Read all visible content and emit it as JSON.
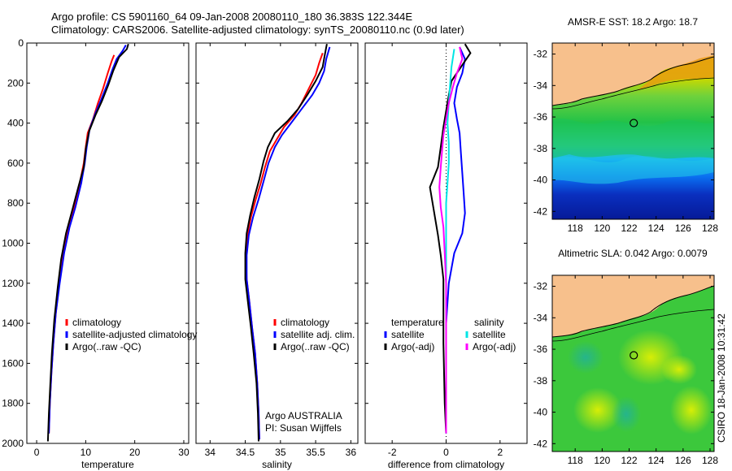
{
  "titles": {
    "line1": "Argo profile: CS 5901160_64 09-Jan-2008 20080110_180 36.383S 122.344E",
    "line2": "Climatology: CARS2006. Satellite-adjusted climatology: synTS_20080110.nc (0.9d later)"
  },
  "side_credit": "CSIRO 18-Jan-2008 10:31:42",
  "colors": {
    "climatology": "#ff0000",
    "satellite": "#0000ff",
    "argo": "#000000",
    "salinity_satellite": "#00e5e5",
    "salinity_argo": "#ff00ff",
    "land": "#f7c08c"
  },
  "chart_data": [
    {
      "type": "line",
      "id": "temperature",
      "xlabel": "temperature",
      "xlim": [
        -2,
        31
      ],
      "ylim": [
        2000,
        0
      ],
      "xticks": [
        0,
        10,
        20,
        30
      ],
      "yticks": [
        0,
        200,
        400,
        600,
        800,
        1000,
        1200,
        1400,
        1600,
        1800,
        2000
      ],
      "legend": [
        "climatology",
        "satellite-adjusted climatology",
        "Argo(..raw -QC)"
      ],
      "series": [
        {
          "name": "climatology",
          "color": "#ff0000",
          "points": [
            [
              15.8,
              60
            ],
            [
              15.3,
              90
            ],
            [
              14.5,
              150
            ],
            [
              13.5,
              230
            ],
            [
              12.5,
              300
            ],
            [
              11.5,
              380
            ],
            [
              10.4,
              450
            ],
            [
              10.0,
              520
            ],
            [
              9.6,
              600
            ],
            [
              8.8,
              700
            ],
            [
              7.6,
              820
            ],
            [
              6.5,
              920
            ],
            [
              5.5,
              1050
            ],
            [
              4.6,
              1200
            ],
            [
              3.9,
              1350
            ],
            [
              3.4,
              1500
            ],
            [
              3.0,
              1650
            ],
            [
              2.7,
              1800
            ],
            [
              2.5,
              1950
            ]
          ]
        },
        {
          "name": "satellite-adjusted climatology",
          "color": "#0000ff",
          "points": [
            [
              18.2,
              10
            ],
            [
              17.5,
              40
            ],
            [
              16.3,
              80
            ],
            [
              15.5,
              130
            ],
            [
              14.5,
              200
            ],
            [
              13.2,
              280
            ],
            [
              12.0,
              350
            ],
            [
              10.8,
              430
            ],
            [
              10.2,
              520
            ],
            [
              9.8,
              600
            ],
            [
              9.1,
              700
            ],
            [
              7.9,
              820
            ],
            [
              6.7,
              920
            ],
            [
              5.6,
              1050
            ],
            [
              4.7,
              1200
            ],
            [
              3.9,
              1350
            ],
            [
              3.4,
              1500
            ],
            [
              3.0,
              1650
            ],
            [
              2.7,
              1800
            ],
            [
              2.5,
              1950
            ]
          ]
        },
        {
          "name": "Argo(..raw -QC)",
          "color": "#000000",
          "points": [
            [
              18.7,
              5
            ],
            [
              18.4,
              30
            ],
            [
              16.8,
              70
            ],
            [
              15.6,
              140
            ],
            [
              14.6,
              210
            ],
            [
              13.3,
              290
            ],
            [
              12.0,
              360
            ],
            [
              10.7,
              440
            ],
            [
              10.0,
              530
            ],
            [
              9.6,
              620
            ],
            [
              8.5,
              720
            ],
            [
              7.2,
              840
            ],
            [
              6.0,
              950
            ],
            [
              5.0,
              1080
            ],
            [
              4.3,
              1220
            ],
            [
              3.6,
              1380
            ],
            [
              3.1,
              1550
            ],
            [
              2.8,
              1700
            ],
            [
              2.5,
              1850
            ],
            [
              2.3,
              1990
            ]
          ]
        }
      ]
    },
    {
      "type": "line",
      "id": "salinity",
      "xlabel": "salinity",
      "xlim": [
        33.8,
        36.1
      ],
      "ylim": [
        2000,
        0
      ],
      "xticks": [
        34,
        34.5,
        35,
        35.5,
        36
      ],
      "yticks": [
        0,
        200,
        400,
        600,
        800,
        1000,
        1200,
        1400,
        1600,
        1800,
        2000
      ],
      "legend": [
        "climatology",
        "satellite adj. clim.",
        "Argo(..raw -QC)"
      ],
      "annotation": [
        "Argo AUSTRALIA",
        "PI: Susan Wijffels"
      ],
      "series": [
        {
          "name": "climatology",
          "color": "#ff0000",
          "points": [
            [
              35.6,
              50
            ],
            [
              35.55,
              100
            ],
            [
              35.5,
              160
            ],
            [
              35.4,
              230
            ],
            [
              35.3,
              300
            ],
            [
              35.2,
              360
            ],
            [
              35.05,
              420
            ],
            [
              34.95,
              480
            ],
            [
              34.85,
              540
            ],
            [
              34.78,
              620
            ],
            [
              34.72,
              700
            ],
            [
              34.65,
              780
            ],
            [
              34.58,
              870
            ],
            [
              34.53,
              960
            ],
            [
              34.51,
              1060
            ],
            [
              34.52,
              1180
            ],
            [
              34.56,
              1300
            ],
            [
              34.6,
              1430
            ],
            [
              34.64,
              1550
            ],
            [
              34.67,
              1700
            ],
            [
              34.69,
              1850
            ],
            [
              34.7,
              1980
            ]
          ]
        },
        {
          "name": "satellite adj. clim.",
          "color": "#0000ff",
          "points": [
            [
              35.7,
              20
            ],
            [
              35.65,
              80
            ],
            [
              35.62,
              140
            ],
            [
              35.55,
              200
            ],
            [
              35.45,
              260
            ],
            [
              35.3,
              330
            ],
            [
              35.15,
              400
            ],
            [
              35.02,
              460
            ],
            [
              34.92,
              520
            ],
            [
              34.83,
              600
            ],
            [
              34.76,
              690
            ],
            [
              34.69,
              780
            ],
            [
              34.61,
              870
            ],
            [
              34.55,
              960
            ],
            [
              34.52,
              1060
            ],
            [
              34.52,
              1180
            ],
            [
              34.56,
              1300
            ],
            [
              34.6,
              1430
            ],
            [
              34.64,
              1550
            ],
            [
              34.67,
              1700
            ],
            [
              34.69,
              1850
            ],
            [
              34.7,
              1980
            ]
          ]
        },
        {
          "name": "Argo(..raw -QC)",
          "color": "#000000",
          "points": [
            [
              35.66,
              5
            ],
            [
              35.63,
              60
            ],
            [
              35.6,
              120
            ],
            [
              35.5,
              190
            ],
            [
              35.38,
              260
            ],
            [
              35.25,
              330
            ],
            [
              35.1,
              390
            ],
            [
              34.92,
              450
            ],
            [
              34.82,
              520
            ],
            [
              34.76,
              590
            ],
            [
              34.7,
              680
            ],
            [
              34.63,
              770
            ],
            [
              34.57,
              860
            ],
            [
              34.52,
              950
            ],
            [
              34.5,
              1050
            ],
            [
              34.5,
              1180
            ],
            [
              34.54,
              1300
            ],
            [
              34.58,
              1420
            ],
            [
              34.62,
              1550
            ],
            [
              34.66,
              1700
            ],
            [
              34.68,
              1850
            ],
            [
              34.69,
              1990
            ]
          ]
        }
      ]
    },
    {
      "type": "line",
      "id": "difference",
      "xlabel": "difference from climatology",
      "xlim": [
        -3,
        3
      ],
      "ylim": [
        2000,
        0
      ],
      "xticks": [
        -2,
        0,
        2
      ],
      "yticks": [
        0,
        200,
        400,
        600,
        800,
        1000,
        1200,
        1400,
        1600,
        1800,
        2000
      ],
      "legend_left_title": "temperature",
      "legend_left": [
        "satellite",
        "Argo(-adj)"
      ],
      "legend_right_title": "salinity",
      "legend_right": [
        "satellite",
        "Argo(-adj)"
      ],
      "series": [
        {
          "name": "temperature satellite",
          "color": "#0000ff",
          "points": [
            [
              0.5,
              20
            ],
            [
              0.7,
              80
            ],
            [
              0.6,
              150
            ],
            [
              0.4,
              220
            ],
            [
              0.3,
              300
            ],
            [
              0.4,
              380
            ],
            [
              0.5,
              450
            ],
            [
              0.55,
              550
            ],
            [
              0.6,
              650
            ],
            [
              0.65,
              750
            ],
            [
              0.7,
              850
            ],
            [
              0.6,
              950
            ],
            [
              0.3,
              1050
            ],
            [
              0.1,
              1200
            ],
            [
              0.0,
              1400
            ],
            [
              0.0,
              1700
            ],
            [
              0.0,
              1950
            ]
          ]
        },
        {
          "name": "temperature Argo(-adj)",
          "color": "#000000",
          "points": [
            [
              0.7,
              5
            ],
            [
              0.9,
              50
            ],
            [
              0.6,
              110
            ],
            [
              0.2,
              190
            ],
            [
              0.1,
              260
            ],
            [
              0.0,
              340
            ],
            [
              -0.1,
              420
            ],
            [
              -0.2,
              520
            ],
            [
              -0.3,
              620
            ],
            [
              -0.6,
              720
            ],
            [
              -0.5,
              800
            ],
            [
              -0.4,
              880
            ],
            [
              -0.3,
              960
            ],
            [
              -0.2,
              1060
            ],
            [
              -0.1,
              1180
            ],
            [
              -0.1,
              1300
            ],
            [
              -0.1,
              1500
            ],
            [
              -0.05,
              1800
            ],
            [
              0.0,
              1950
            ]
          ]
        },
        {
          "name": "salinity satellite",
          "color": "#00e5e5",
          "points": [
            [
              0.3,
              30
            ],
            [
              0.2,
              120
            ],
            [
              0.15,
              200
            ],
            [
              0.1,
              300
            ],
            [
              0.05,
              400
            ],
            [
              0.1,
              500
            ],
            [
              0.1,
              600
            ],
            [
              0.05,
              700
            ],
            [
              0.0,
              800
            ],
            [
              0.0,
              950
            ],
            [
              0.0,
              1100
            ],
            [
              0.0,
              1300
            ],
            [
              0.0,
              1500
            ],
            [
              0.0,
              1700
            ],
            [
              0.0,
              1950
            ]
          ]
        },
        {
          "name": "salinity Argo(-adj)",
          "color": "#ff00ff",
          "points": [
            [
              0.5,
              20
            ],
            [
              0.6,
              80
            ],
            [
              0.4,
              150
            ],
            [
              0.25,
              220
            ],
            [
              0.1,
              300
            ],
            [
              0.0,
              380
            ],
            [
              -0.1,
              460
            ],
            [
              -0.15,
              540
            ],
            [
              -0.2,
              620
            ],
            [
              -0.25,
              720
            ],
            [
              -0.2,
              820
            ],
            [
              -0.1,
              920
            ],
            [
              -0.05,
              1050
            ],
            [
              0.0,
              1200
            ],
            [
              0.0,
              1400
            ],
            [
              0.0,
              1700
            ],
            [
              0.0,
              1950
            ]
          ]
        }
      ]
    },
    {
      "type": "heatmap",
      "id": "sst_map",
      "title": "AMSR-E SST: 18.2 Argo: 18.7",
      "xlim": [
        116.3,
        128.3
      ],
      "ylim": [
        -42.5,
        -31.3
      ],
      "xticks": [
        118,
        120,
        122,
        124,
        126,
        128
      ],
      "yticks": [
        -42,
        -40,
        -38,
        -36,
        -34,
        -32
      ],
      "marker": {
        "lon": 122.344,
        "lat": -36.383
      }
    },
    {
      "type": "heatmap",
      "id": "sla_map",
      "title": "Altimetric SLA: 0.042 Argo: 0.0079",
      "xlim": [
        116.3,
        128.3
      ],
      "ylim": [
        -42.5,
        -31.3
      ],
      "xticks": [
        118,
        120,
        122,
        124,
        126,
        128
      ],
      "yticks": [
        -42,
        -40,
        -38,
        -36,
        -34,
        -32
      ],
      "marker": {
        "lon": 122.344,
        "lat": -36.383
      }
    }
  ]
}
